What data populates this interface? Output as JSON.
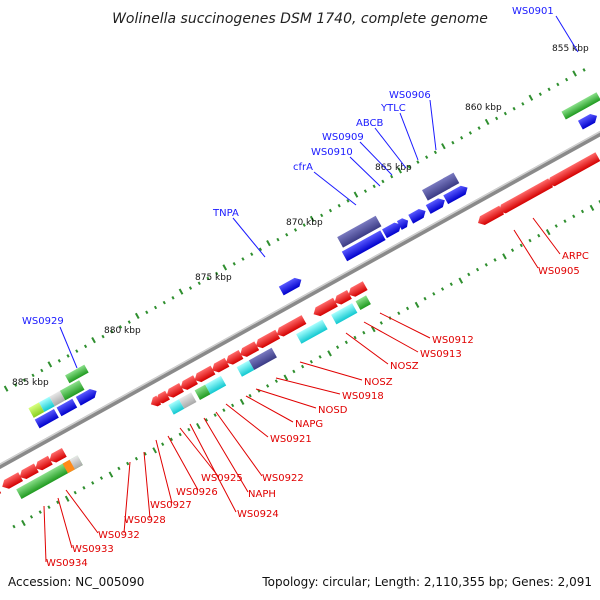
{
  "title": "Wolinella succinogenes DSM 1740, complete genome",
  "footer": {
    "accession": "Accession: NC_005090",
    "topology": "Topology: circular; Length: 2,110,355 bp; Genes: 2,091"
  },
  "kbp_labels": [
    "855 kbp",
    "860 kbp",
    "865 kbp",
    "870 kbp",
    "875 kbp",
    "880 kbp",
    "885 kbp"
  ],
  "forward_labels": [
    "WS0901",
    "WS0906",
    "YTLC",
    "ABCB",
    "WS0909",
    "WS0910",
    "cfrA",
    "TNPA",
    "WS0929"
  ],
  "reverse_labels": [
    "ARPC",
    "WS0905",
    "WS0912",
    "WS0913",
    "NOSZ",
    "NOSZ",
    "WS0918",
    "NOSD",
    "NAPG",
    "WS0921",
    "WS0922",
    "NAPH",
    "WS0924",
    "WS0925",
    "WS0926",
    "WS0927",
    "WS0928",
    "WS0932",
    "WS0933",
    "WS0934"
  ],
  "colors": {
    "forward_label": "#1a1aff",
    "reverse_label": "#e00000",
    "backbone": "#8a8a8a",
    "cds_blue": "#0000ee",
    "cds_red": "#ee0000",
    "cds_navy": "#4a4a9a",
    "cds_green": "#2bb52b",
    "cds_cyan": "#22e0e0",
    "tick_green": "#2f8f2f"
  }
}
